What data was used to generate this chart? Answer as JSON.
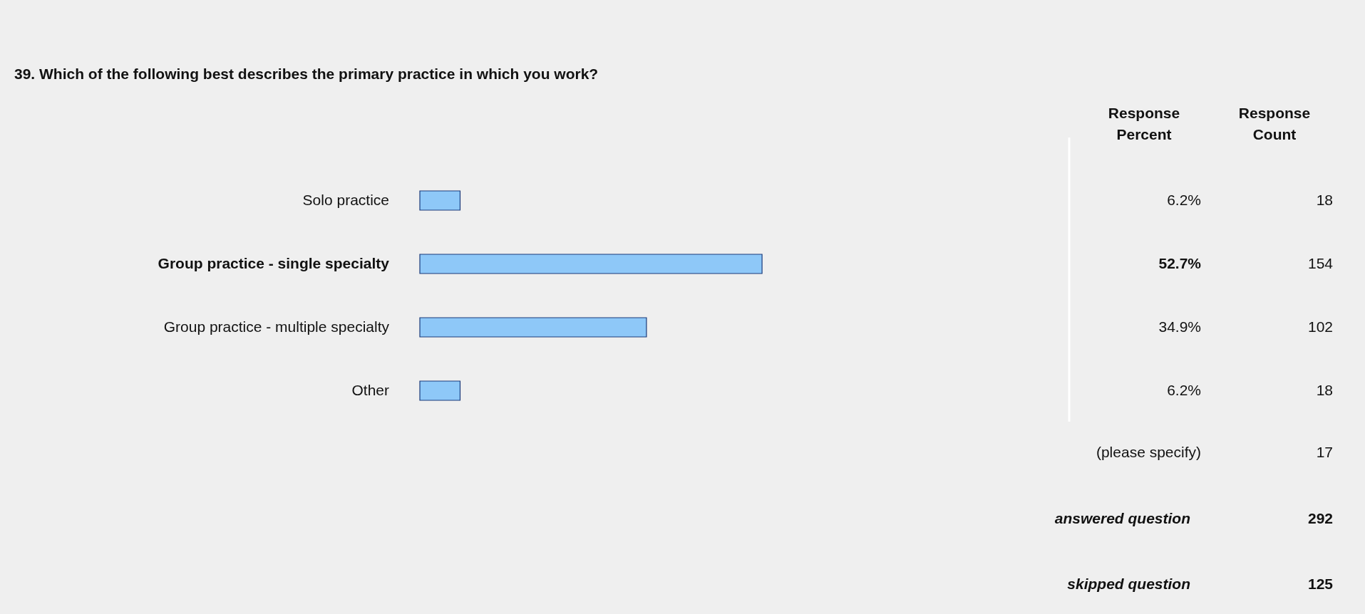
{
  "chart_data": {
    "type": "bar",
    "orientation": "horizontal",
    "title": "39. Which of the following best describes the primary practice in which you work?",
    "categories": [
      "Solo practice",
      "Group practice - single specialty",
      "Group practice - multiple specialty",
      "Other"
    ],
    "values": [
      6.2,
      52.7,
      34.9,
      6.2
    ],
    "value_labels": [
      "6.2%",
      "52.7%",
      "34.9%",
      "6.2%"
    ],
    "color": "#8ec8f8",
    "xlim": [
      0,
      100
    ],
    "tick_labels": "y",
    "annotations": [
      "Response Percent",
      "Response Count",
      "18",
      "154",
      "102",
      "18",
      "(please specify)",
      "17",
      "answered question",
      "292",
      "skipped question",
      "125"
    ]
  }
}
